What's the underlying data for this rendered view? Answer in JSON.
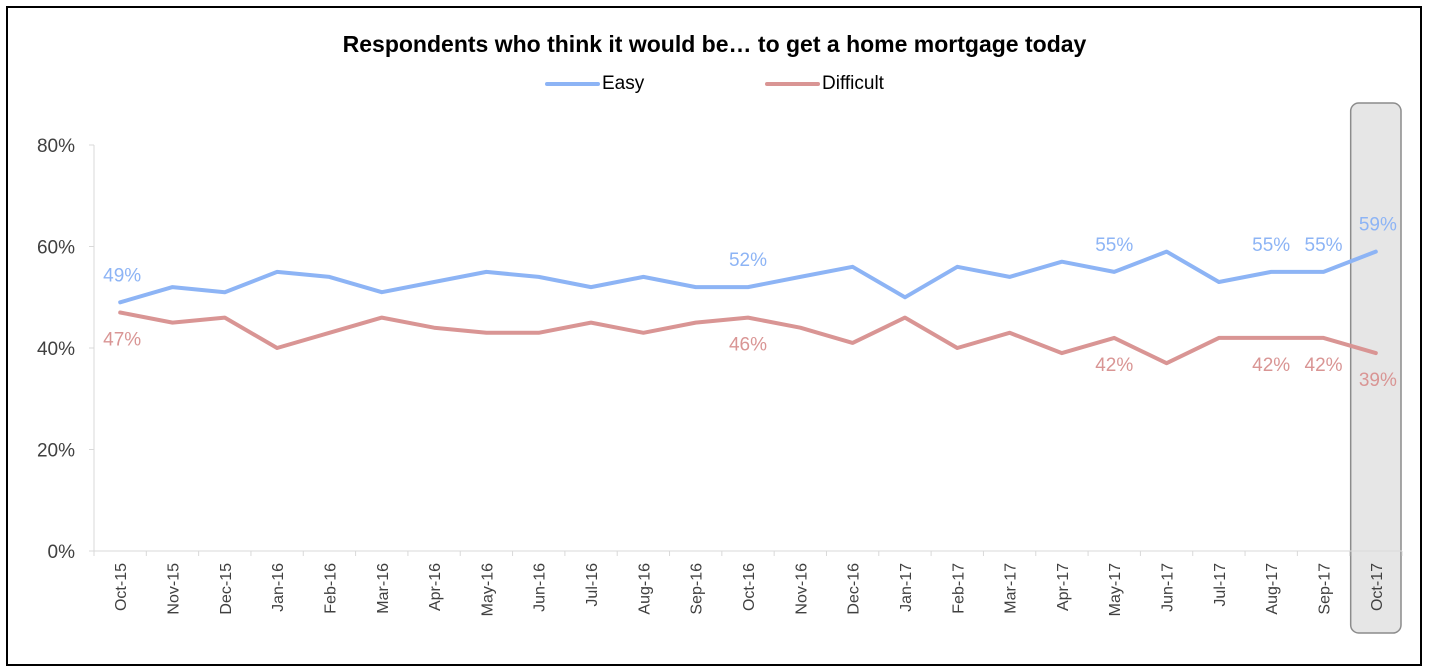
{
  "chart_data": {
    "type": "line",
    "title": "Respondents who think it would be… to get a home mortgage today",
    "categories": [
      "Oct-15",
      "Nov-15",
      "Dec-15",
      "Jan-16",
      "Feb-16",
      "Mar-16",
      "Apr-16",
      "May-16",
      "Jun-16",
      "Jul-16",
      "Aug-16",
      "Sep-16",
      "Oct-16",
      "Nov-16",
      "Dec-16",
      "Jan-17",
      "Feb-17",
      "Mar-17",
      "Apr-17",
      "May-17",
      "Jun-17",
      "Jul-17",
      "Aug-17",
      "Sep-17",
      "Oct-17"
    ],
    "series": [
      {
        "name": "Easy",
        "color": "#8db4f5",
        "values": [
          49,
          52,
          51,
          55,
          54,
          51,
          53,
          55,
          54,
          52,
          54,
          52,
          52,
          54,
          56,
          50,
          56,
          54,
          57,
          55,
          59,
          53,
          55,
          55,
          59
        ],
        "labels": [
          {
            "index": 0,
            "text": "49%",
            "pos": "above"
          },
          {
            "index": 12,
            "text": "52%",
            "pos": "above"
          },
          {
            "index": 19,
            "text": "55%",
            "pos": "above"
          },
          {
            "index": 22,
            "text": "55%",
            "pos": "above"
          },
          {
            "index": 23,
            "text": "55%",
            "pos": "above"
          },
          {
            "index": 24,
            "text": "59%",
            "pos": "above"
          }
        ]
      },
      {
        "name": "Difficult",
        "color": "#d99594",
        "values": [
          47,
          45,
          46,
          40,
          43,
          46,
          44,
          43,
          43,
          45,
          43,
          45,
          46,
          44,
          41,
          46,
          40,
          43,
          39,
          42,
          37,
          42,
          42,
          42,
          39
        ],
        "labels": [
          {
            "index": 0,
            "text": "47%",
            "pos": "below"
          },
          {
            "index": 12,
            "text": "46%",
            "pos": "below"
          },
          {
            "index": 19,
            "text": "42%",
            "pos": "below"
          },
          {
            "index": 22,
            "text": "42%",
            "pos": "below"
          },
          {
            "index": 23,
            "text": "42%",
            "pos": "below"
          },
          {
            "index": 24,
            "text": "39%",
            "pos": "below"
          }
        ]
      }
    ],
    "yticks": [
      "0%",
      "20%",
      "40%",
      "60%",
      "80%"
    ],
    "ylim": [
      0,
      80
    ],
    "highlight_category": "Oct-17",
    "legend": "top-center",
    "grid": false
  }
}
